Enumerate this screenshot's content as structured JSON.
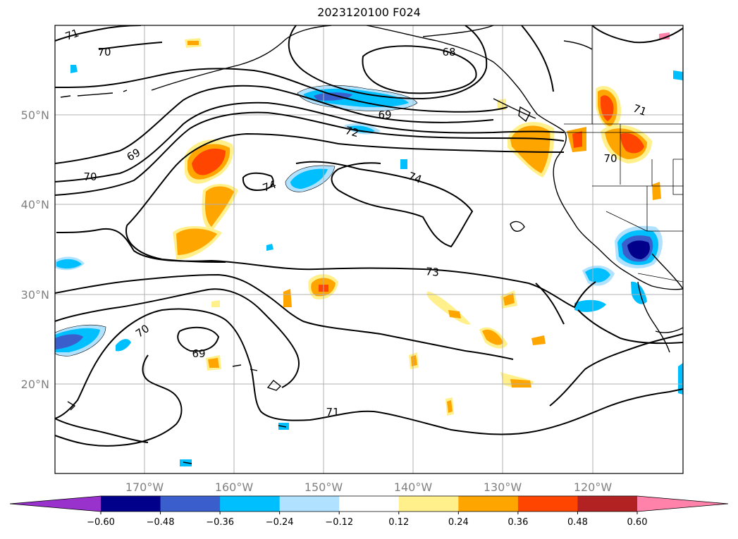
{
  "title": "2023120100 F024",
  "latitude_labels": [
    "50°N",
    "40°N",
    "30°N",
    "20°N"
  ],
  "longitude_labels": [
    "170°W",
    "160°W",
    "150°W",
    "140°W",
    "130°W",
    "120°W"
  ],
  "colorbar": {
    "ticks": [
      "−0.60",
      "−0.48",
      "−0.36",
      "−0.24",
      "−0.12",
      "0.12",
      "0.24",
      "0.36",
      "0.48",
      "0.60"
    ],
    "colors": [
      "#9932cc",
      "#00008b",
      "#3a5fcd",
      "#00bfff",
      "#b0e2ff",
      "#ffffff",
      "#fff08c",
      "#ffa500",
      "#ff4500",
      "#b22222",
      "#ff82ab"
    ]
  },
  "contour_labels": [
    "71",
    "70",
    "68",
    "69",
    "72",
    "74",
    "74",
    "71",
    "70",
    "69",
    "70",
    "73",
    "70",
    "69",
    "71"
  ],
  "shading_colors": {
    "neg_light": "#b0e2ff",
    "neg_mid": "#00bfff",
    "neg_strong": "#3a5fcd",
    "neg_max": "#00008b",
    "pos_light": "#fff08c",
    "pos_mid": "#ffa500",
    "pos_strong": "#ff4500",
    "pos_max": "#b22222"
  }
}
